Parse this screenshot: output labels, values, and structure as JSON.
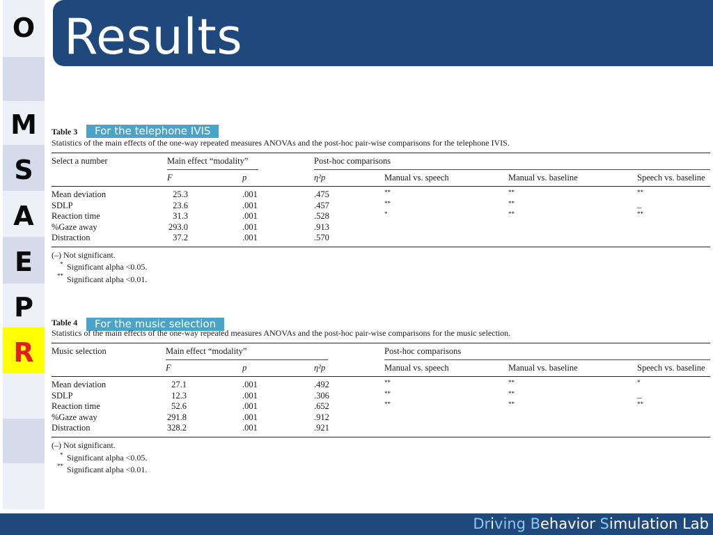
{
  "nav": {
    "letters": [
      "O",
      "M",
      "S",
      "A",
      "E",
      "P",
      "R"
    ]
  },
  "title": "Results",
  "table3": {
    "label": "Table 3",
    "tag": "For the telephone IVIS",
    "caption": "Statistics of the main effects of the one-way repeated measures ANOVAs and the post-hoc pair-wise comparisons for the telephone IVIS.",
    "col_task": "Select a number",
    "col_main": "Main effect “modality”",
    "col_posthoc": "Post-hoc comparisons",
    "sub_F": "F",
    "sub_p": "p",
    "sub_eta": "η²p",
    "sub_mvs": "Manual vs. speech",
    "sub_mvb": "Manual vs. baseline",
    "sub_svb": "Speech vs. baseline",
    "rows": [
      {
        "name": "Mean deviation",
        "F": "25.3",
        "p": ".001",
        "eta": ".475",
        "mvs": "**",
        "mvb": "**",
        "svb": "**"
      },
      {
        "name": "SDLP",
        "F": "23.6",
        "p": ".001",
        "eta": ".457",
        "mvs": "**",
        "mvb": "**",
        "svb": "–"
      },
      {
        "name": "Reaction time",
        "F": "31.3",
        "p": ".001",
        "eta": ".528",
        "mvs": "*",
        "mvb": "**",
        "svb": "**"
      },
      {
        "name": "%Gaze away",
        "F": "293.0",
        "p": ".001",
        "eta": ".913",
        "mvs": "",
        "mvb": "",
        "svb": ""
      },
      {
        "name": "Distraction",
        "F": "37.2",
        "p": ".001",
        "eta": ".570",
        "mvs": "",
        "mvb": "",
        "svb": ""
      }
    ],
    "notes": [
      "(–) Not significant.",
      "Significant alpha <0.05.",
      "Significant alpha <0.01."
    ],
    "note_marks": [
      "*",
      "**"
    ]
  },
  "table4": {
    "label": "Table 4",
    "tag": "For the music selection",
    "caption": "Statistics of the main effects of the one-way repeated measures ANOVAs and the post-hoc pair-wise comparisons for the music selection.",
    "col_task": "Music selection",
    "col_main": "Main effect “modality”",
    "col_posthoc": "Post-hoc comparisons",
    "sub_F": "F",
    "sub_p": "p",
    "sub_eta": "η²p",
    "sub_mvs": "Manual vs. speech",
    "sub_mvb": "Manual vs. baseline",
    "sub_svb": "Speech vs. baseline",
    "rows": [
      {
        "name": "Mean deviation",
        "F": "27.1",
        "p": ".001",
        "eta": ".492",
        "mvs": "**",
        "mvb": "**",
        "svb": "*"
      },
      {
        "name": "SDLP",
        "F": "12.3",
        "p": ".001",
        "eta": ".306",
        "mvs": "**",
        "mvb": "**",
        "svb": "–"
      },
      {
        "name": "Reaction time",
        "F": "52.6",
        "p": ".001",
        "eta": ".652",
        "mvs": "**",
        "mvb": "**",
        "svb": "**"
      },
      {
        "name": "%Gaze away",
        "F": "291.8",
        "p": ".001",
        "eta": ".912",
        "mvs": "",
        "mvb": "",
        "svb": ""
      },
      {
        "name": "Distraction",
        "F": "328.2",
        "p": ".001",
        "eta": ".921",
        "mvs": "",
        "mvb": "",
        "svb": ""
      }
    ],
    "notes": [
      "(–) Not significant.",
      "Significant alpha <0.05.",
      "Significant alpha <0.01."
    ],
    "note_marks": [
      "*",
      "**"
    ]
  },
  "footer": {
    "parts": [
      {
        "text": "Dr",
        "color": "#8ec8e8"
      },
      {
        "text": "i",
        "color": "#ffffff"
      },
      {
        "text": "ving ",
        "color": "#8ec8e8"
      },
      {
        "text": "B",
        "color": "#8ec8e8"
      },
      {
        "text": "ehavior ",
        "color": "#ffffff"
      },
      {
        "text": "S",
        "color": "#8ec8e8"
      },
      {
        "text": "imulation Lab",
        "color": "#ffffff"
      }
    ]
  }
}
